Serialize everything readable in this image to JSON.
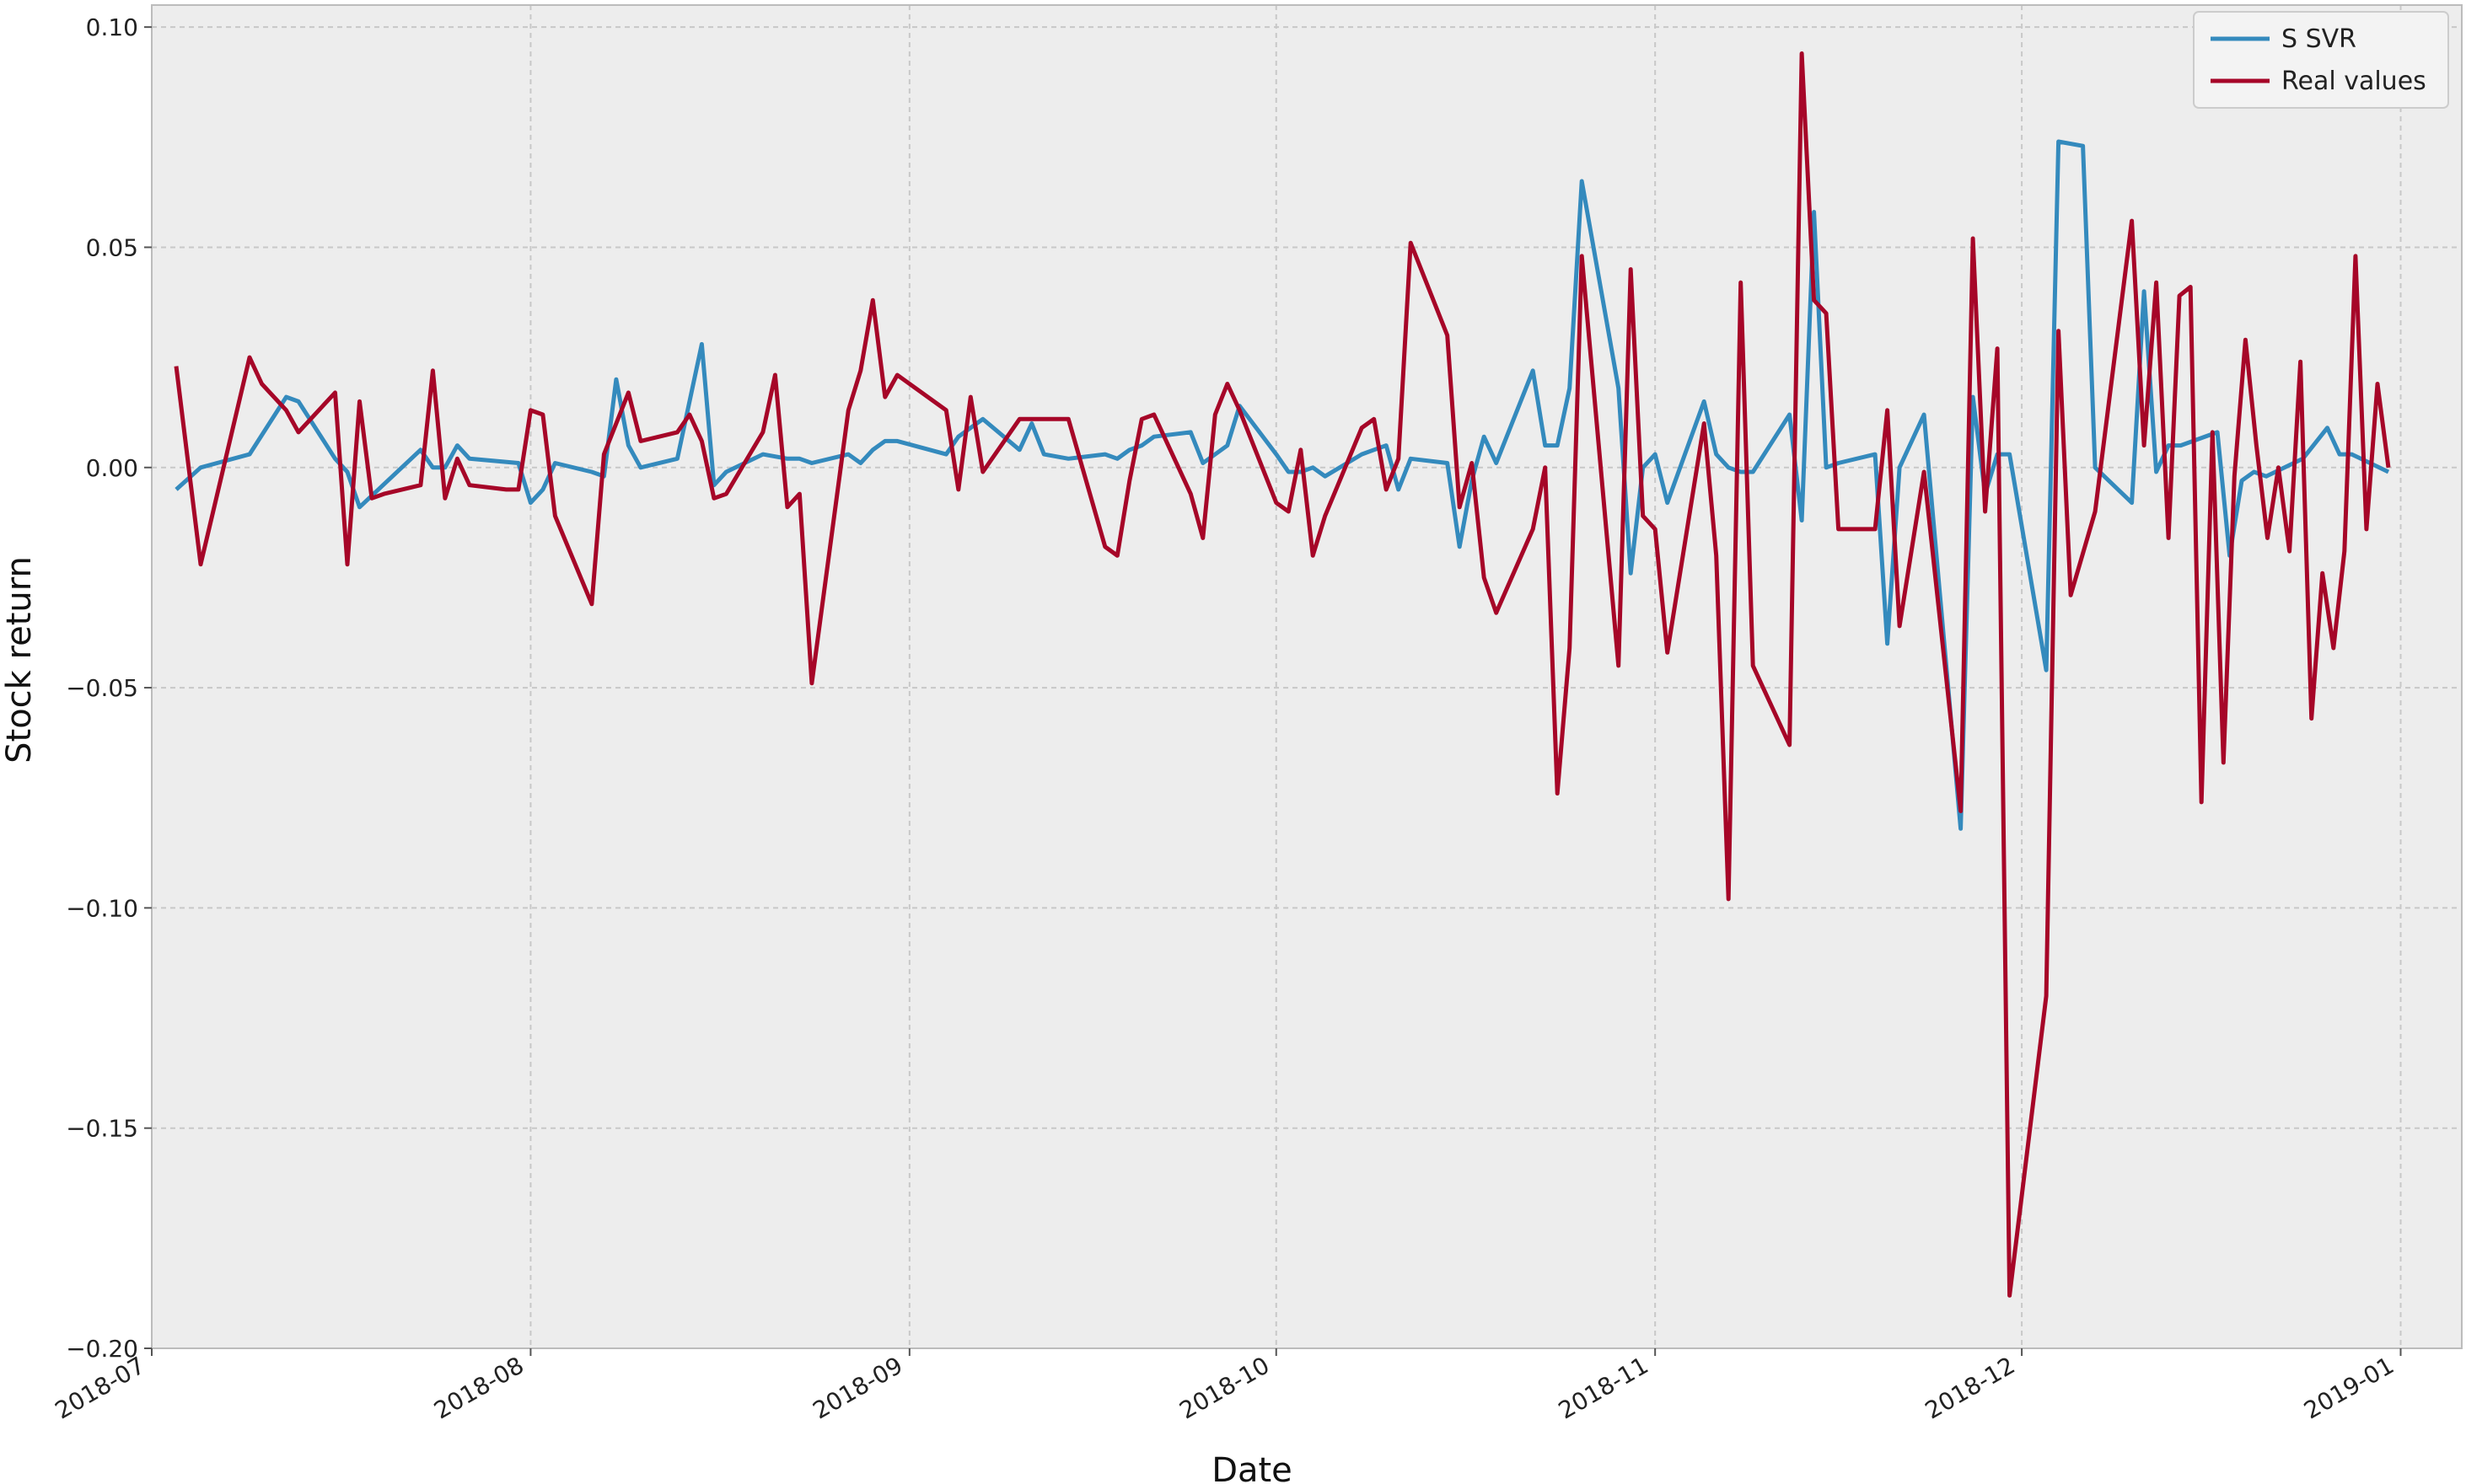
{
  "chart_data": {
    "type": "line",
    "title": "",
    "xlabel": "Date",
    "ylabel": "Stock return",
    "xlim": [
      "2018-07-01",
      "2019-01-06"
    ],
    "ylim": [
      -0.2,
      0.105
    ],
    "grid": true,
    "legend_position": "top-right",
    "x_ticks": [
      "2018-07",
      "2018-08",
      "2018-09",
      "2018-10",
      "2018-11",
      "2018-12",
      "2019-01"
    ],
    "y_ticks": [
      "0.10",
      "0.05",
      "0.00",
      "−0.05",
      "−0.10",
      "−0.15",
      "−0.20"
    ],
    "y_tick_values": [
      0.1,
      0.05,
      0.0,
      -0.05,
      -0.1,
      -0.15,
      -0.2
    ],
    "colors": {
      "background": "#ededed",
      "grid": "#c8c8c8",
      "frame": "#bcbcbc"
    },
    "series": [
      {
        "name": "S SVR",
        "color": "#348abd",
        "points": [
          [
            "2018-07-03",
            -0.005
          ],
          [
            "2018-07-05",
            0.0
          ],
          [
            "2018-07-09",
            0.003
          ],
          [
            "2018-07-12",
            0.016
          ],
          [
            "2018-07-13",
            0.015
          ],
          [
            "2018-07-16",
            0.002
          ],
          [
            "2018-07-17",
            -0.001
          ],
          [
            "2018-07-18",
            -0.009
          ],
          [
            "2018-07-23",
            0.004
          ],
          [
            "2018-07-24",
            0.0
          ],
          [
            "2018-07-25",
            0.0
          ],
          [
            "2018-07-26",
            0.005
          ],
          [
            "2018-07-27",
            0.002
          ],
          [
            "2018-07-31",
            0.001
          ],
          [
            "2018-08-01",
            -0.008
          ],
          [
            "2018-08-02",
            -0.005
          ],
          [
            "2018-08-03",
            0.001
          ],
          [
            "2018-08-06",
            -0.001
          ],
          [
            "2018-08-07",
            -0.002
          ],
          [
            "2018-08-08",
            0.02
          ],
          [
            "2018-08-09",
            0.005
          ],
          [
            "2018-08-10",
            0.0
          ],
          [
            "2018-08-13",
            0.002
          ],
          [
            "2018-08-15",
            0.028
          ],
          [
            "2018-08-16",
            -0.004
          ],
          [
            "2018-08-17",
            -0.001
          ],
          [
            "2018-08-20",
            0.003
          ],
          [
            "2018-08-22",
            0.002
          ],
          [
            "2018-08-23",
            0.002
          ],
          [
            "2018-08-24",
            0.001
          ],
          [
            "2018-08-27",
            0.003
          ],
          [
            "2018-08-28",
            0.001
          ],
          [
            "2018-08-29",
            0.004
          ],
          [
            "2018-08-30",
            0.006
          ],
          [
            "2018-08-31",
            0.006
          ],
          [
            "2018-09-04",
            0.003
          ],
          [
            "2018-09-05",
            0.007
          ],
          [
            "2018-09-06",
            0.009
          ],
          [
            "2018-09-07",
            0.011
          ],
          [
            "2018-09-10",
            0.004
          ],
          [
            "2018-09-11",
            0.01
          ],
          [
            "2018-09-12",
            0.003
          ],
          [
            "2018-09-14",
            0.002
          ],
          [
            "2018-09-17",
            0.003
          ],
          [
            "2018-09-18",
            0.002
          ],
          [
            "2018-09-19",
            0.004
          ],
          [
            "2018-09-20",
            0.005
          ],
          [
            "2018-09-21",
            0.007
          ],
          [
            "2018-09-24",
            0.008
          ],
          [
            "2018-09-25",
            0.001
          ],
          [
            "2018-09-26",
            0.003
          ],
          [
            "2018-09-27",
            0.005
          ],
          [
            "2018-09-28",
            0.014
          ],
          [
            "2018-10-01",
            0.003
          ],
          [
            "2018-10-02",
            -0.001
          ],
          [
            "2018-10-03",
            -0.001
          ],
          [
            "2018-10-04",
            0.0
          ],
          [
            "2018-10-05",
            -0.002
          ],
          [
            "2018-10-08",
            0.003
          ],
          [
            "2018-10-09",
            0.004
          ],
          [
            "2018-10-10",
            0.005
          ],
          [
            "2018-10-11",
            -0.005
          ],
          [
            "2018-10-12",
            0.002
          ],
          [
            "2018-10-15",
            0.001
          ],
          [
            "2018-10-16",
            -0.018
          ],
          [
            "2018-10-17",
            -0.003
          ],
          [
            "2018-10-18",
            0.007
          ],
          [
            "2018-10-19",
            0.001
          ],
          [
            "2018-10-22",
            0.022
          ],
          [
            "2018-10-23",
            0.005
          ],
          [
            "2018-10-24",
            0.005
          ],
          [
            "2018-10-25",
            0.018
          ],
          [
            "2018-10-26",
            0.065
          ],
          [
            "2018-10-29",
            0.018
          ],
          [
            "2018-10-30",
            -0.024
          ],
          [
            "2018-10-31",
            0.0
          ],
          [
            "2018-11-01",
            0.003
          ],
          [
            "2018-11-02",
            -0.008
          ],
          [
            "2018-11-05",
            0.015
          ],
          [
            "2018-11-06",
            0.003
          ],
          [
            "2018-11-07",
            0.0
          ],
          [
            "2018-11-08",
            -0.001
          ],
          [
            "2018-11-09",
            -0.001
          ],
          [
            "2018-11-12",
            0.012
          ],
          [
            "2018-11-13",
            -0.012
          ],
          [
            "2018-11-14",
            0.058
          ],
          [
            "2018-11-15",
            0.0
          ],
          [
            "2018-11-16",
            0.001
          ],
          [
            "2018-11-19",
            0.003
          ],
          [
            "2018-11-20",
            -0.04
          ],
          [
            "2018-11-21",
            0.0
          ],
          [
            "2018-11-23",
            0.012
          ],
          [
            "2018-11-26",
            -0.082
          ],
          [
            "2018-11-27",
            0.016
          ],
          [
            "2018-11-28",
            -0.006
          ],
          [
            "2018-11-29",
            0.003
          ],
          [
            "2018-11-30",
            0.003
          ],
          [
            "2018-12-03",
            -0.046
          ],
          [
            "2018-12-04",
            0.074
          ],
          [
            "2018-12-06",
            0.073
          ],
          [
            "2018-12-07",
            0.0
          ],
          [
            "2018-12-10",
            -0.008
          ],
          [
            "2018-12-11",
            0.04
          ],
          [
            "2018-12-12",
            -0.001
          ],
          [
            "2018-12-13",
            0.005
          ],
          [
            "2018-12-14",
            0.005
          ],
          [
            "2018-12-17",
            0.008
          ],
          [
            "2018-12-18",
            -0.02
          ],
          [
            "2018-12-19",
            -0.003
          ],
          [
            "2018-12-20",
            -0.001
          ],
          [
            "2018-12-21",
            -0.002
          ],
          [
            "2018-12-24",
            0.002
          ],
          [
            "2018-12-26",
            0.009
          ],
          [
            "2018-12-27",
            0.003
          ],
          [
            "2018-12-28",
            0.003
          ],
          [
            "2018-12-31",
            -0.001
          ]
        ]
      },
      {
        "name": "Real values",
        "color": "#a60628",
        "points": [
          [
            "2018-07-03",
            0.023
          ],
          [
            "2018-07-05",
            -0.022
          ],
          [
            "2018-07-09",
            0.025
          ],
          [
            "2018-07-10",
            0.019
          ],
          [
            "2018-07-12",
            0.013
          ],
          [
            "2018-07-13",
            0.008
          ],
          [
            "2018-07-16",
            0.017
          ],
          [
            "2018-07-17",
            -0.022
          ],
          [
            "2018-07-18",
            0.015
          ],
          [
            "2018-07-19",
            -0.007
          ],
          [
            "2018-07-20",
            -0.006
          ],
          [
            "2018-07-23",
            -0.004
          ],
          [
            "2018-07-24",
            0.022
          ],
          [
            "2018-07-25",
            -0.007
          ],
          [
            "2018-07-26",
            0.002
          ],
          [
            "2018-07-27",
            -0.004
          ],
          [
            "2018-07-30",
            -0.005
          ],
          [
            "2018-07-31",
            -0.005
          ],
          [
            "2018-08-01",
            0.013
          ],
          [
            "2018-08-02",
            0.012
          ],
          [
            "2018-08-03",
            -0.011
          ],
          [
            "2018-08-06",
            -0.031
          ],
          [
            "2018-08-07",
            0.003
          ],
          [
            "2018-08-08",
            0.01
          ],
          [
            "2018-08-09",
            0.017
          ],
          [
            "2018-08-10",
            0.006
          ],
          [
            "2018-08-13",
            0.008
          ],
          [
            "2018-08-14",
            0.012
          ],
          [
            "2018-08-15",
            0.006
          ],
          [
            "2018-08-16",
            -0.007
          ],
          [
            "2018-08-17",
            -0.006
          ],
          [
            "2018-08-20",
            0.008
          ],
          [
            "2018-08-21",
            0.021
          ],
          [
            "2018-08-22",
            -0.009
          ],
          [
            "2018-08-23",
            -0.006
          ],
          [
            "2018-08-24",
            -0.049
          ],
          [
            "2018-08-27",
            0.013
          ],
          [
            "2018-08-28",
            0.022
          ],
          [
            "2018-08-29",
            0.038
          ],
          [
            "2018-08-30",
            0.016
          ],
          [
            "2018-08-31",
            0.021
          ],
          [
            "2018-09-04",
            0.013
          ],
          [
            "2018-09-05",
            -0.005
          ],
          [
            "2018-09-06",
            0.016
          ],
          [
            "2018-09-07",
            -0.001
          ],
          [
            "2018-09-10",
            0.011
          ],
          [
            "2018-09-14",
            0.011
          ],
          [
            "2018-09-17",
            -0.018
          ],
          [
            "2018-09-18",
            -0.02
          ],
          [
            "2018-09-19",
            -0.003
          ],
          [
            "2018-09-20",
            0.011
          ],
          [
            "2018-09-21",
            0.012
          ],
          [
            "2018-09-24",
            -0.006
          ],
          [
            "2018-09-25",
            -0.016
          ],
          [
            "2018-09-26",
            0.012
          ],
          [
            "2018-09-27",
            0.019
          ],
          [
            "2018-09-28",
            0.013
          ],
          [
            "2018-10-01",
            -0.008
          ],
          [
            "2018-10-02",
            -0.01
          ],
          [
            "2018-10-03",
            0.004
          ],
          [
            "2018-10-04",
            -0.02
          ],
          [
            "2018-10-05",
            -0.011
          ],
          [
            "2018-10-08",
            0.009
          ],
          [
            "2018-10-09",
            0.011
          ],
          [
            "2018-10-10",
            -0.005
          ],
          [
            "2018-10-11",
            0.002
          ],
          [
            "2018-10-12",
            0.051
          ],
          [
            "2018-10-15",
            0.03
          ],
          [
            "2018-10-16",
            -0.009
          ],
          [
            "2018-10-17",
            0.001
          ],
          [
            "2018-10-18",
            -0.025
          ],
          [
            "2018-10-19",
            -0.033
          ],
          [
            "2018-10-22",
            -0.014
          ],
          [
            "2018-10-23",
            0.0
          ],
          [
            "2018-10-24",
            -0.074
          ],
          [
            "2018-10-25",
            -0.041
          ],
          [
            "2018-10-26",
            0.048
          ],
          [
            "2018-10-29",
            -0.045
          ],
          [
            "2018-10-30",
            0.045
          ],
          [
            "2018-10-31",
            -0.011
          ],
          [
            "2018-11-01",
            -0.014
          ],
          [
            "2018-11-02",
            -0.042
          ],
          [
            "2018-11-05",
            0.01
          ],
          [
            "2018-11-06",
            -0.02
          ],
          [
            "2018-11-07",
            -0.098
          ],
          [
            "2018-11-08",
            0.042
          ],
          [
            "2018-11-09",
            -0.045
          ],
          [
            "2018-11-12",
            -0.063
          ],
          [
            "2018-11-13",
            0.094
          ],
          [
            "2018-11-14",
            0.038
          ],
          [
            "2018-11-15",
            0.035
          ],
          [
            "2018-11-16",
            -0.014
          ],
          [
            "2018-11-19",
            -0.014
          ],
          [
            "2018-11-20",
            0.013
          ],
          [
            "2018-11-21",
            -0.036
          ],
          [
            "2018-11-23",
            -0.001
          ],
          [
            "2018-11-26",
            -0.078
          ],
          [
            "2018-11-27",
            0.052
          ],
          [
            "2018-11-28",
            -0.01
          ],
          [
            "2018-11-29",
            0.027
          ],
          [
            "2018-11-30",
            -0.188
          ],
          [
            "2018-12-03",
            -0.12
          ],
          [
            "2018-12-04",
            0.031
          ],
          [
            "2018-12-05",
            -0.029
          ],
          [
            "2018-12-07",
            -0.01
          ],
          [
            "2018-12-10",
            0.056
          ],
          [
            "2018-12-11",
            0.005
          ],
          [
            "2018-12-12",
            0.042
          ],
          [
            "2018-12-13",
            -0.016
          ],
          [
            "2018-12-14",
            0.039
          ],
          [
            "2018-12-17",
            0.041
          ],
          [
            "2018-12-18",
            -0.076
          ],
          [
            "2018-12-19",
            0.008
          ],
          [
            "2018-12-20",
            -0.067
          ],
          [
            "2018-12-21",
            -0.002
          ],
          [
            "2018-12-24",
            0.029
          ],
          [
            "2018-12-26",
            0.005
          ],
          [
            "2018-12-27",
            -0.016
          ],
          [
            "2018-12-28",
            0.0
          ],
          [
            "2018-12-31",
            -0.019
          ],
          [
            "2018-12-31",
            0.024
          ],
          [
            "2018-12-31",
            -0.057
          ],
          [
            "2018-12-31",
            -0.024
          ],
          [
            "2018-12-31",
            -0.041
          ],
          [
            "2018-12-31",
            -0.019
          ],
          [
            "2018-12-31",
            0.048
          ],
          [
            "2018-12-31",
            -0.014
          ],
          [
            "2018-12-31",
            0.019
          ],
          [
            "2018-12-31",
            0.0
          ]
        ]
      }
    ]
  }
}
